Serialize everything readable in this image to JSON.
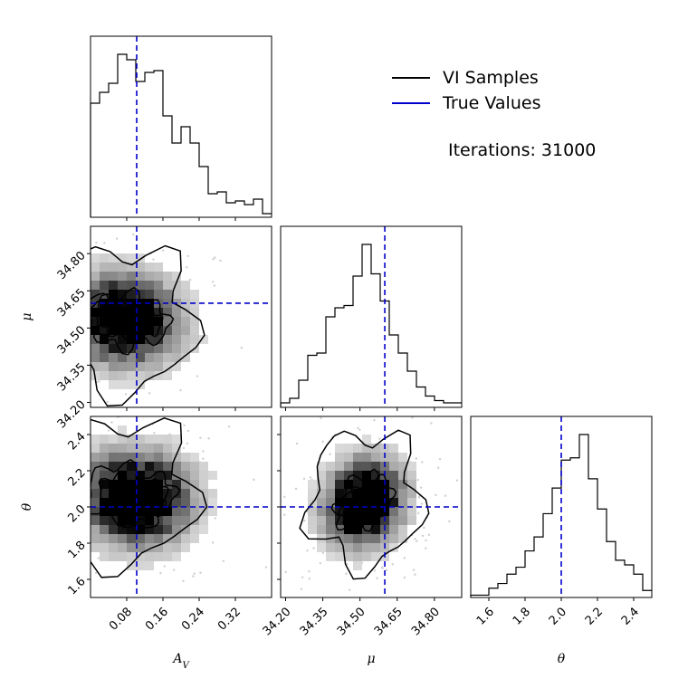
{
  "chart_data": {
    "type": "corner",
    "parameters": [
      {
        "key": "av",
        "label": "A",
        "label_sub": "V",
        "range": [
          0.0,
          0.4
        ],
        "ticks": [
          0.08,
          0.16,
          0.24,
          0.32
        ],
        "tick_labels": [
          "0.08",
          "0.16",
          "0.24",
          "0.32"
        ]
      },
      {
        "key": "mu",
        "label": "μ",
        "label_sub": "",
        "range": [
          34.18,
          34.91
        ],
        "ticks": [
          34.2,
          34.35,
          34.5,
          34.65,
          34.8
        ],
        "tick_labels": [
          "34.20",
          "34.35",
          "34.50",
          "34.65",
          "34.80"
        ]
      },
      {
        "key": "theta",
        "label": "θ",
        "label_sub": "",
        "range": [
          1.5,
          2.5
        ],
        "ticks": [
          1.6,
          1.8,
          2.0,
          2.2,
          2.4
        ],
        "tick_labels": [
          "1.6",
          "1.8",
          "2.0",
          "2.2",
          "2.4"
        ]
      }
    ],
    "true_values": {
      "av": 0.102,
      "mu": 34.6,
      "theta": 2.0
    },
    "histograms": {
      "av": {
        "bins": 20,
        "counts": [
          63,
          69,
          74,
          90,
          87,
          75,
          80,
          81,
          56,
          41,
          50,
          41,
          28,
          13,
          14,
          8,
          9,
          7,
          10,
          2
        ]
      },
      "mu": {
        "bins": 20,
        "counts": [
          2,
          4,
          12,
          23,
          24,
          40,
          44,
          45,
          58,
          72,
          59,
          47,
          32,
          24,
          16,
          9,
          5,
          3,
          2,
          2
        ]
      },
      "theta": {
        "bins": 20,
        "counts": [
          1,
          1,
          4,
          6,
          10,
          13,
          20,
          26,
          36,
          47,
          59,
          60,
          70,
          51,
          38,
          24,
          16,
          14,
          10,
          3
        ]
      }
    },
    "pairs": [
      {
        "x": "av",
        "y": "mu",
        "peaks": [
          [
            0.07,
            34.53
          ],
          [
            0.13,
            34.52
          ],
          [
            0.02,
            34.55
          ]
        ],
        "spread": [
          0.06,
          0.11
        ]
      },
      {
        "x": "av",
        "y": "theta",
        "peaks": [
          [
            0.06,
            2.08
          ],
          [
            0.14,
            2.07
          ],
          [
            0.11,
            1.99
          ]
        ],
        "spread": [
          0.065,
          0.15
        ]
      },
      {
        "x": "mu",
        "y": "theta",
        "peaks": [
          [
            34.52,
            2.04
          ],
          [
            34.57,
            2.06
          ],
          [
            34.46,
            1.97
          ]
        ],
        "spread": [
          0.085,
          0.14
        ]
      }
    ],
    "legend": {
      "placement": "top-right",
      "entries": [
        {
          "label": "VI Samples",
          "color": "#000000"
        },
        {
          "label": "True Values",
          "color": "#0000cc"
        }
      ]
    },
    "annotation": "Iterations: 31000",
    "grid": false
  }
}
